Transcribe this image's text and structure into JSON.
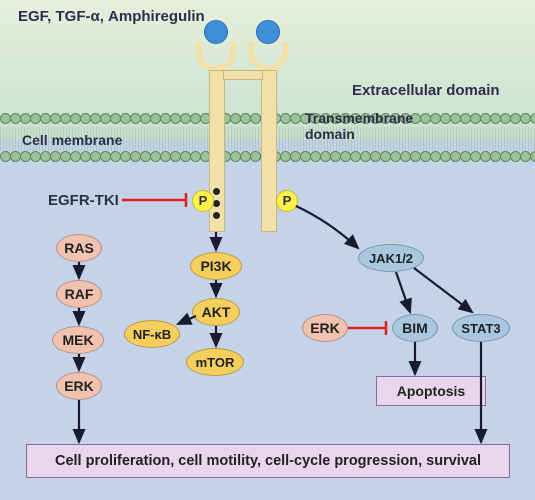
{
  "labels": {
    "ligands": "EGF, TGF-α, Amphiregulin",
    "extracellular": "Extracellular domain",
    "cellmembrane": "Cell membrane",
    "transmembrane": "Transmembrane\ndomain",
    "egfrtki": "EGFR-TKI",
    "P": "P"
  },
  "cascade": {
    "ras": "RAS",
    "raf": "RAF",
    "mek": "MEK",
    "erk1": "ERK",
    "pi3k": "PI3K",
    "akt": "AKT",
    "nfkb": "NF-κB",
    "mtor": "mTOR",
    "jak": "JAK1/2",
    "erk2": "ERK",
    "bim": "BIM",
    "stat3": "STAT3",
    "apoptosis": "Apoptosis",
    "outcome": "Cell proliferation, cell motility, cell-cycle progression, survival"
  },
  "style": {
    "fontsize_label": 15,
    "fontsize_node": 14,
    "fontsize_small": 13,
    "pink": "#f2c2b0",
    "yellow": "#f5cf5e",
    "blue": "#a9c7de",
    "outcome_bg": "#e9d5ec",
    "arrow_black": "#1a1a2e",
    "arrow_red": "#d22"
  }
}
